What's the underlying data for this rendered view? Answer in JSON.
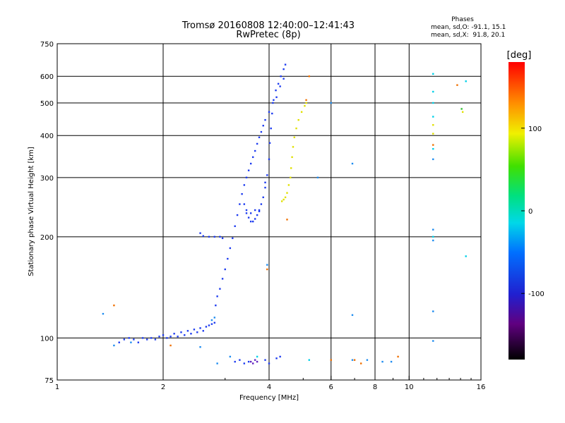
{
  "title": "Tromsø 20160808 12:40:00–12:41:43",
  "subtitle": "RwPretec (8p)",
  "phase_box": {
    "heading": "Phases",
    "line_o": "mean, sd,O: -91.1, 15.1",
    "line_x": "mean, sd,X:  91.8, 20.1"
  },
  "chart_data": {
    "type": "scatter",
    "title": "Tromsø 20160808 12:40:00–12:41:43",
    "subtitle": "RwPretec (8p)",
    "xlabel": "Frequency [MHz]",
    "ylabel": "Stationary phase Virtual Height [km]",
    "xscale": "log",
    "yscale": "log",
    "xlim": [
      1,
      16
    ],
    "ylim": [
      75,
      750
    ],
    "xticks": [
      1,
      2,
      4,
      6,
      8,
      10,
      16
    ],
    "xtick_labels": [
      "1",
      "2",
      "4",
      "6",
      "8",
      "10",
      "16"
    ],
    "yticks": [
      75,
      100,
      200,
      300,
      400,
      500,
      600,
      750
    ],
    "ytick_labels": [
      "75",
      "100",
      "200",
      "300",
      "400",
      "500",
      "600",
      "750"
    ],
    "grid": true,
    "colorbar": {
      "label": "[deg]",
      "range": [
        -180,
        180
      ],
      "ticks": [
        100,
        0,
        -100
      ],
      "tick_labels": [
        "100",
        "0",
        "-100"
      ]
    },
    "series": [
      {
        "color": "#1e3cf0",
        "phase": -95,
        "points": [
          [
            1.5,
            97
          ],
          [
            1.55,
            99
          ],
          [
            1.6,
            100
          ],
          [
            1.65,
            99
          ],
          [
            1.7,
            97
          ],
          [
            1.75,
            100
          ],
          [
            1.8,
            99
          ],
          [
            1.85,
            100
          ],
          [
            1.9,
            99
          ],
          [
            1.95,
            101
          ],
          [
            2.0,
            102
          ],
          [
            2.05,
            100
          ],
          [
            2.1,
            101
          ],
          [
            2.15,
            103
          ],
          [
            2.2,
            101
          ],
          [
            2.25,
            104
          ],
          [
            2.3,
            102
          ],
          [
            2.35,
            105
          ],
          [
            2.4,
            103
          ],
          [
            2.45,
            106
          ],
          [
            2.5,
            104
          ],
          [
            2.55,
            107
          ],
          [
            2.6,
            105
          ],
          [
            2.65,
            108
          ],
          [
            2.7,
            109
          ],
          [
            2.75,
            110
          ],
          [
            2.8,
            111
          ]
        ]
      },
      {
        "color": "#1e3cf0",
        "phase": -95,
        "points": [
          [
            2.55,
            205
          ],
          [
            2.6,
            201
          ],
          [
            2.7,
            200
          ],
          [
            2.8,
            200
          ],
          [
            2.9,
            200
          ],
          [
            2.95,
            198
          ]
        ]
      },
      {
        "color": "#1e3cf0",
        "phase": -95,
        "points": [
          [
            2.82,
            125
          ],
          [
            2.85,
            133
          ],
          [
            2.9,
            140
          ],
          [
            2.95,
            150
          ],
          [
            3.0,
            160
          ],
          [
            3.05,
            172
          ],
          [
            3.1,
            185
          ],
          [
            3.15,
            198
          ],
          [
            3.2,
            215
          ],
          [
            3.25,
            232
          ],
          [
            3.3,
            250
          ],
          [
            3.35,
            268
          ],
          [
            3.4,
            285
          ],
          [
            3.45,
            300
          ],
          [
            3.5,
            315
          ],
          [
            3.55,
            330
          ],
          [
            3.6,
            345
          ],
          [
            3.65,
            360
          ],
          [
            3.7,
            378
          ],
          [
            3.75,
            395
          ],
          [
            3.8,
            410
          ],
          [
            3.85,
            428
          ],
          [
            3.9,
            445
          ]
        ]
      },
      {
        "color": "#1e3cf0",
        "phase": -95,
        "points": [
          [
            3.4,
            250
          ],
          [
            3.45,
            235
          ],
          [
            3.5,
            228
          ],
          [
            3.55,
            222
          ],
          [
            3.6,
            222
          ],
          [
            3.65,
            226
          ],
          [
            3.7,
            232
          ],
          [
            3.75,
            240
          ],
          [
            3.8,
            250
          ],
          [
            3.85,
            262
          ],
          [
            3.9,
            280
          ],
          [
            3.95,
            305
          ],
          [
            4.0,
            340
          ],
          [
            4.02,
            380
          ],
          [
            4.05,
            420
          ],
          [
            4.08,
            465
          ],
          [
            4.12,
            510
          ],
          [
            4.18,
            545
          ],
          [
            4.25,
            570
          ],
          [
            4.32,
            600
          ],
          [
            4.4,
            630
          ],
          [
            4.45,
            650
          ]
        ]
      },
      {
        "color": "#1e3cf0",
        "phase": -95,
        "points": [
          [
            3.45,
            240
          ],
          [
            3.55,
            235
          ],
          [
            3.65,
            240
          ],
          [
            3.75,
            238
          ],
          [
            3.9,
            290
          ],
          [
            4.0,
            470
          ],
          [
            4.1,
            500
          ],
          [
            4.2,
            520
          ],
          [
            4.3,
            560
          ],
          [
            4.4,
            590
          ]
        ]
      },
      {
        "color": "#1e3cf0",
        "phase": -95,
        "points": [
          [
            3.2,
            85
          ],
          [
            3.3,
            86
          ],
          [
            3.4,
            84
          ],
          [
            3.5,
            85
          ],
          [
            3.9,
            86
          ],
          [
            4.0,
            84
          ],
          [
            4.2,
            87
          ],
          [
            4.3,
            88
          ]
        ]
      },
      {
        "color": "#6020c0",
        "phase": -130,
        "points": [
          [
            3.55,
            85
          ],
          [
            3.6,
            84
          ],
          [
            3.65,
            86
          ],
          [
            3.7,
            85
          ]
        ]
      },
      {
        "color": "#1e8cf0",
        "phase": -80,
        "points": [
          [
            1.35,
            118
          ],
          [
            1.45,
            95
          ],
          [
            1.62,
            97
          ],
          [
            2.55,
            94
          ],
          [
            2.75,
            113
          ],
          [
            2.8,
            115
          ],
          [
            3.1,
            88
          ],
          [
            2.85,
            84
          ],
          [
            6.9,
            330
          ],
          [
            6.9,
            117
          ],
          [
            11.7,
            340
          ],
          [
            11.7,
            210
          ],
          [
            11.7,
            195
          ],
          [
            11.7,
            120
          ],
          [
            11.7,
            98
          ],
          [
            5.5,
            300
          ],
          [
            6.0,
            500
          ],
          [
            3.95,
            165
          ],
          [
            6.9,
            86
          ],
          [
            7.6,
            86
          ],
          [
            8.4,
            85
          ],
          [
            8.9,
            85
          ]
        ]
      },
      {
        "color": "#00d0e8",
        "phase": -55,
        "points": [
          [
            11.7,
            610
          ],
          [
            11.7,
            540
          ],
          [
            11.7,
            500
          ],
          [
            11.7,
            455
          ],
          [
            11.7,
            365
          ],
          [
            11.7,
            200
          ],
          [
            14.5,
            580
          ],
          [
            14.5,
            175
          ],
          [
            5.2,
            86
          ],
          [
            3.7,
            88
          ]
        ]
      },
      {
        "color": "#e0e000",
        "phase": 100,
        "points": [
          [
            4.35,
            255
          ],
          [
            4.4,
            258
          ],
          [
            4.45,
            262
          ],
          [
            4.5,
            270
          ],
          [
            4.55,
            285
          ],
          [
            4.6,
            300
          ],
          [
            4.62,
            320
          ],
          [
            4.65,
            345
          ],
          [
            4.68,
            370
          ],
          [
            4.72,
            395
          ],
          [
            4.78,
            420
          ],
          [
            4.85,
            445
          ],
          [
            4.95,
            470
          ],
          [
            5.05,
            490
          ],
          [
            5.1,
            500
          ],
          [
            11.7,
            430
          ],
          [
            11.7,
            405
          ],
          [
            14.2,
            470
          ]
        ]
      },
      {
        "color": "#f07000",
        "phase": 150,
        "points": [
          [
            1.45,
            125
          ],
          [
            3.95,
            160
          ],
          [
            4.5,
            225
          ],
          [
            5.1,
            510
          ],
          [
            5.2,
            600
          ],
          [
            2.1,
            95
          ],
          [
            6.0,
            86
          ],
          [
            7.0,
            86
          ],
          [
            7.3,
            84
          ],
          [
            9.3,
            88
          ],
          [
            13.7,
            565
          ],
          [
            11.7,
            375
          ]
        ]
      },
      {
        "color": "#30c030",
        "phase": 40,
        "points": [
          [
            14.1,
            480
          ]
        ]
      }
    ]
  }
}
